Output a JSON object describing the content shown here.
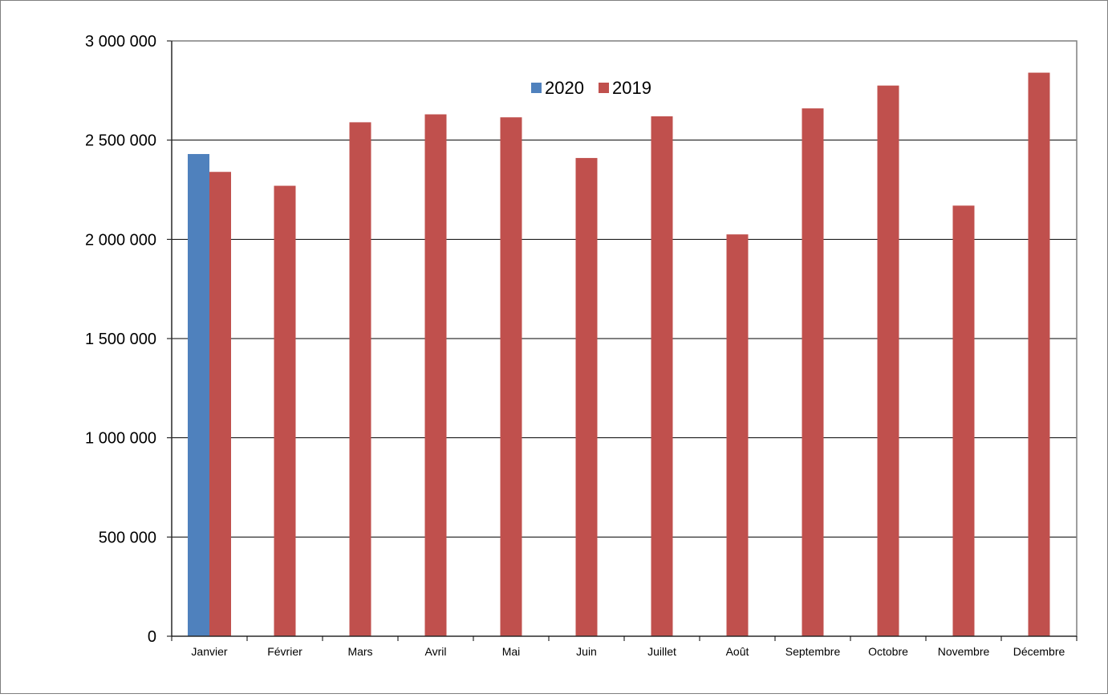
{
  "chart_data": {
    "type": "bar",
    "title": "",
    "xlabel": "",
    "ylabel": "",
    "categories": [
      "Janvier",
      "Février",
      "Mars",
      "Avril",
      "Mai",
      "Juin",
      "Juillet",
      "Août",
      "Septembre",
      "Octobre",
      "Novembre",
      "Décembre"
    ],
    "series": [
      {
        "name": "2020",
        "color": "#4F81BD",
        "values": [
          2430000,
          null,
          null,
          null,
          null,
          null,
          null,
          null,
          null,
          null,
          null,
          null
        ]
      },
      {
        "name": "2019",
        "color": "#C0504D",
        "values": [
          2340000,
          2270000,
          2590000,
          2630000,
          2615000,
          2410000,
          2620000,
          2025000,
          2660000,
          2775000,
          2170000,
          2840000
        ]
      }
    ],
    "ylim": [
      0,
      3000000
    ],
    "yticks": [
      0,
      500000,
      1000000,
      1500000,
      2000000,
      2500000,
      3000000
    ],
    "ytick_labels": [
      "0",
      "500 000",
      "1 000 000",
      "1 500 000",
      "2 000 000",
      "2 500 000",
      "3 000 000"
    ],
    "grid": true,
    "legend_position": "top-center"
  }
}
